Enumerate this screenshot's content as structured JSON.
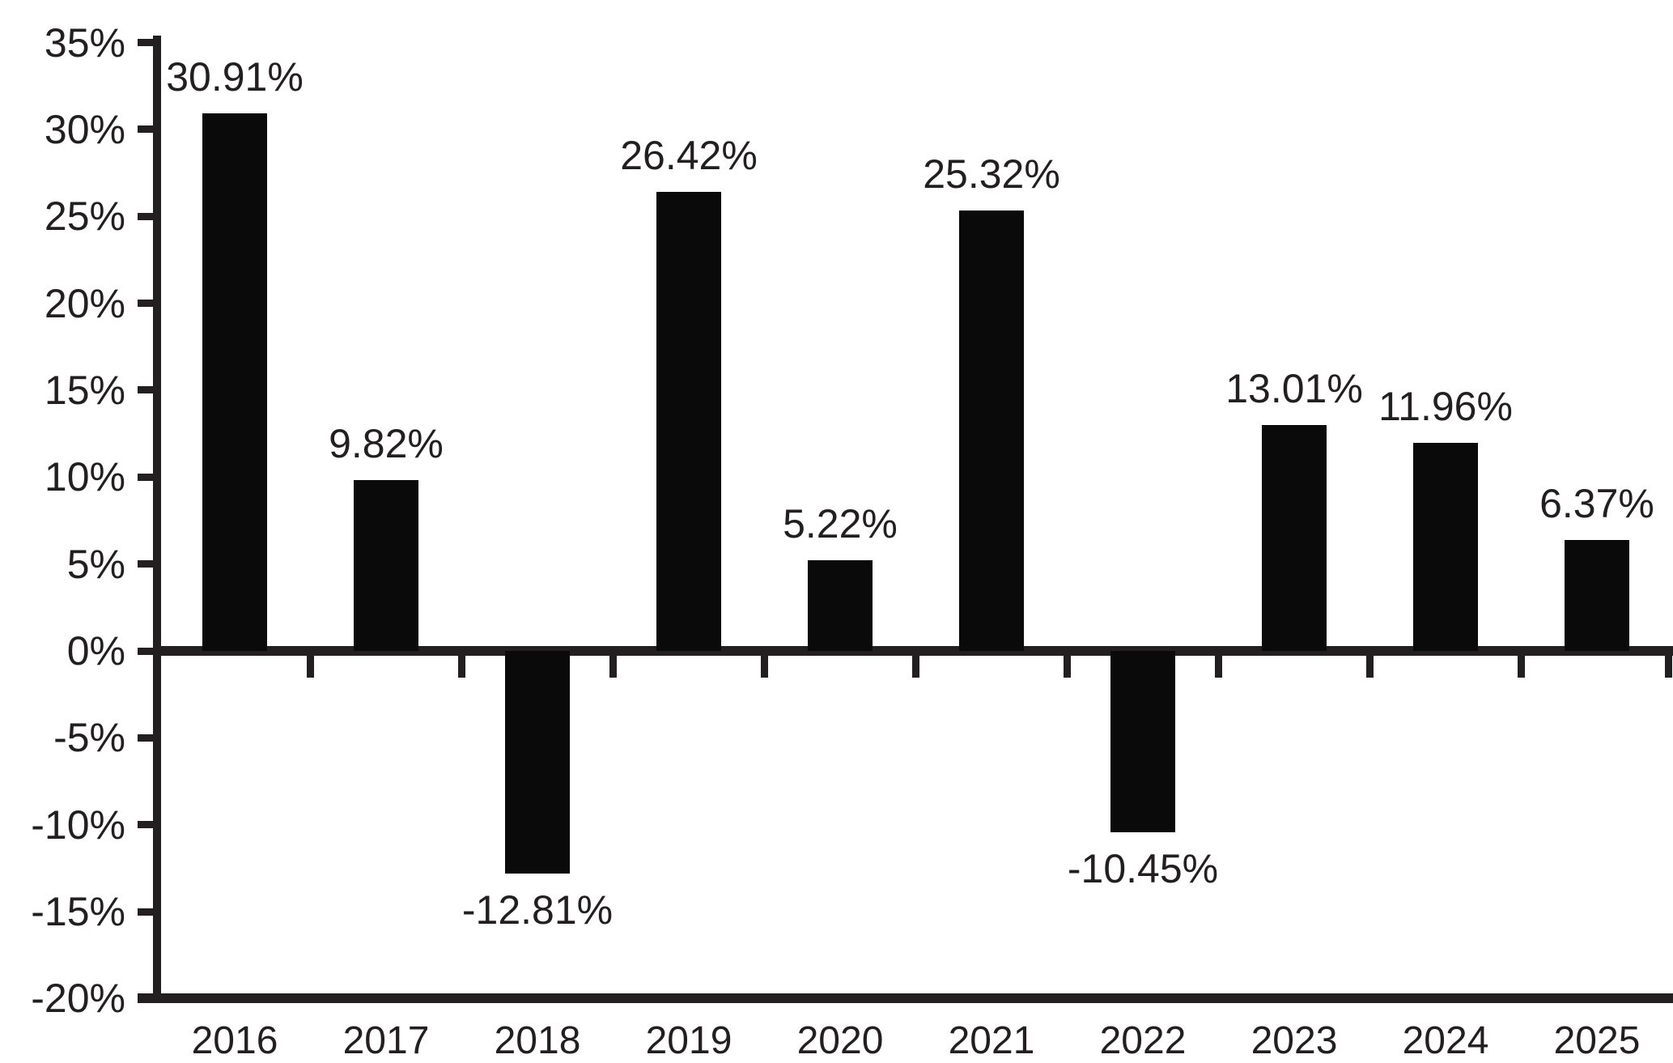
{
  "chart_data": {
    "type": "bar",
    "title": "",
    "xlabel": "",
    "ylabel": "",
    "categories": [
      "2016",
      "2017",
      "2018",
      "2019",
      "2020",
      "2021",
      "2022",
      "2023",
      "2024",
      "2025"
    ],
    "values": [
      30.91,
      9.82,
      -12.81,
      26.42,
      5.22,
      25.32,
      -10.45,
      13.01,
      11.96,
      6.37
    ],
    "data_labels": [
      "30.91%",
      "9.82%",
      "-12.81%",
      "26.42%",
      "5.22%",
      "25.32%",
      "-10.45%",
      "13.01%",
      "11.96%",
      "6.37%"
    ],
    "ylim": [
      -20,
      35
    ],
    "y_tick_step": 5,
    "y_tick_labels": [
      "35%",
      "30%",
      "25%",
      "20%",
      "15%",
      "10%",
      "5%",
      "0%",
      "-5%",
      "-10%",
      "-15%",
      "-20%"
    ],
    "grid": false,
    "legend": "none",
    "bar_color": "#0a0a0a",
    "axis_color": "#231f20",
    "text_color": "#231f20",
    "background_color": "#ffffff"
  }
}
